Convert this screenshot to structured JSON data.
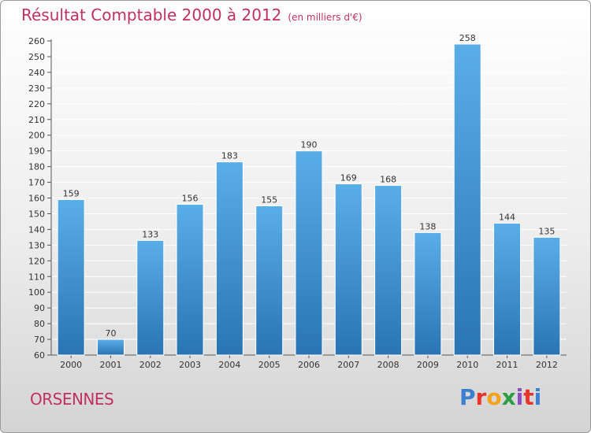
{
  "header": {
    "title": "Résultat Comptable 2000 à 2012",
    "unit": "(en milliers d'€)"
  },
  "footer": {
    "commune": "ORSENNES",
    "brand": "Proxiti",
    "brand_colors": [
      "#3b7fd0",
      "#e8342b",
      "#f3a31c",
      "#2f9b46",
      "#8b4ec4",
      "#e8342b",
      "#3b7fd0"
    ]
  },
  "colors": {
    "bar_top": "#5aaee8",
    "bar_bottom": "#2a74b4",
    "grid": "#ffffff",
    "axis_text": "#333333",
    "accent": "#c03060"
  },
  "chart_data": {
    "type": "bar",
    "title": "Résultat Comptable 2000 à 2012",
    "subtitle": "(en milliers d'€)",
    "categories": [
      "2000",
      "2001",
      "2002",
      "2003",
      "2004",
      "2005",
      "2006",
      "2007",
      "2008",
      "2009",
      "2010",
      "2011",
      "2012"
    ],
    "values": [
      159,
      70,
      133,
      156,
      183,
      155,
      190,
      169,
      168,
      138,
      258,
      144,
      135
    ],
    "ylim": [
      60,
      260
    ],
    "ytick_step": 10,
    "xlabel": "",
    "ylabel": "",
    "grid": true
  }
}
